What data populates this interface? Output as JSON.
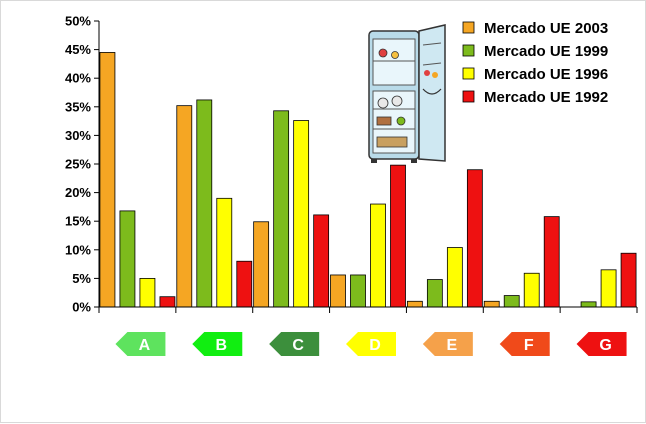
{
  "chart_data": {
    "type": "bar",
    "categories": [
      "A",
      "B",
      "C",
      "D",
      "E",
      "F",
      "G"
    ],
    "series": [
      {
        "name": "Mercado UE 2003",
        "color": "#f5a623",
        "values": [
          44.5,
          35.2,
          14.9,
          5.6,
          1.0,
          1.0,
          0.0
        ]
      },
      {
        "name": "Mercado UE 1999",
        "color": "#7dbb1c",
        "values": [
          16.8,
          36.2,
          34.3,
          5.6,
          4.8,
          2.0,
          0.9
        ]
      },
      {
        "name": "Mercado UE 1996",
        "color": "#ffff00",
        "values": [
          5.0,
          19.0,
          32.6,
          18.0,
          10.4,
          5.9,
          6.5
        ]
      },
      {
        "name": "Mercado UE 1992",
        "color": "#ee1111",
        "values": [
          1.8,
          8.0,
          16.1,
          24.8,
          24.0,
          15.8,
          9.4
        ]
      }
    ],
    "ylim": [
      0,
      50
    ],
    "yticks": [
      "0%",
      "5%",
      "10%",
      "15%",
      "20%",
      "25%",
      "30%",
      "35%",
      "40%",
      "45%",
      "50%"
    ],
    "legend_position": "top-right",
    "category_label_colors": [
      "#5ee35e",
      "#11ee11",
      "#3c8f3c",
      "#ffff00",
      "#f5a14a",
      "#f04a1a",
      "#ee1111"
    ],
    "image_icon": "refrigerator-icon"
  }
}
